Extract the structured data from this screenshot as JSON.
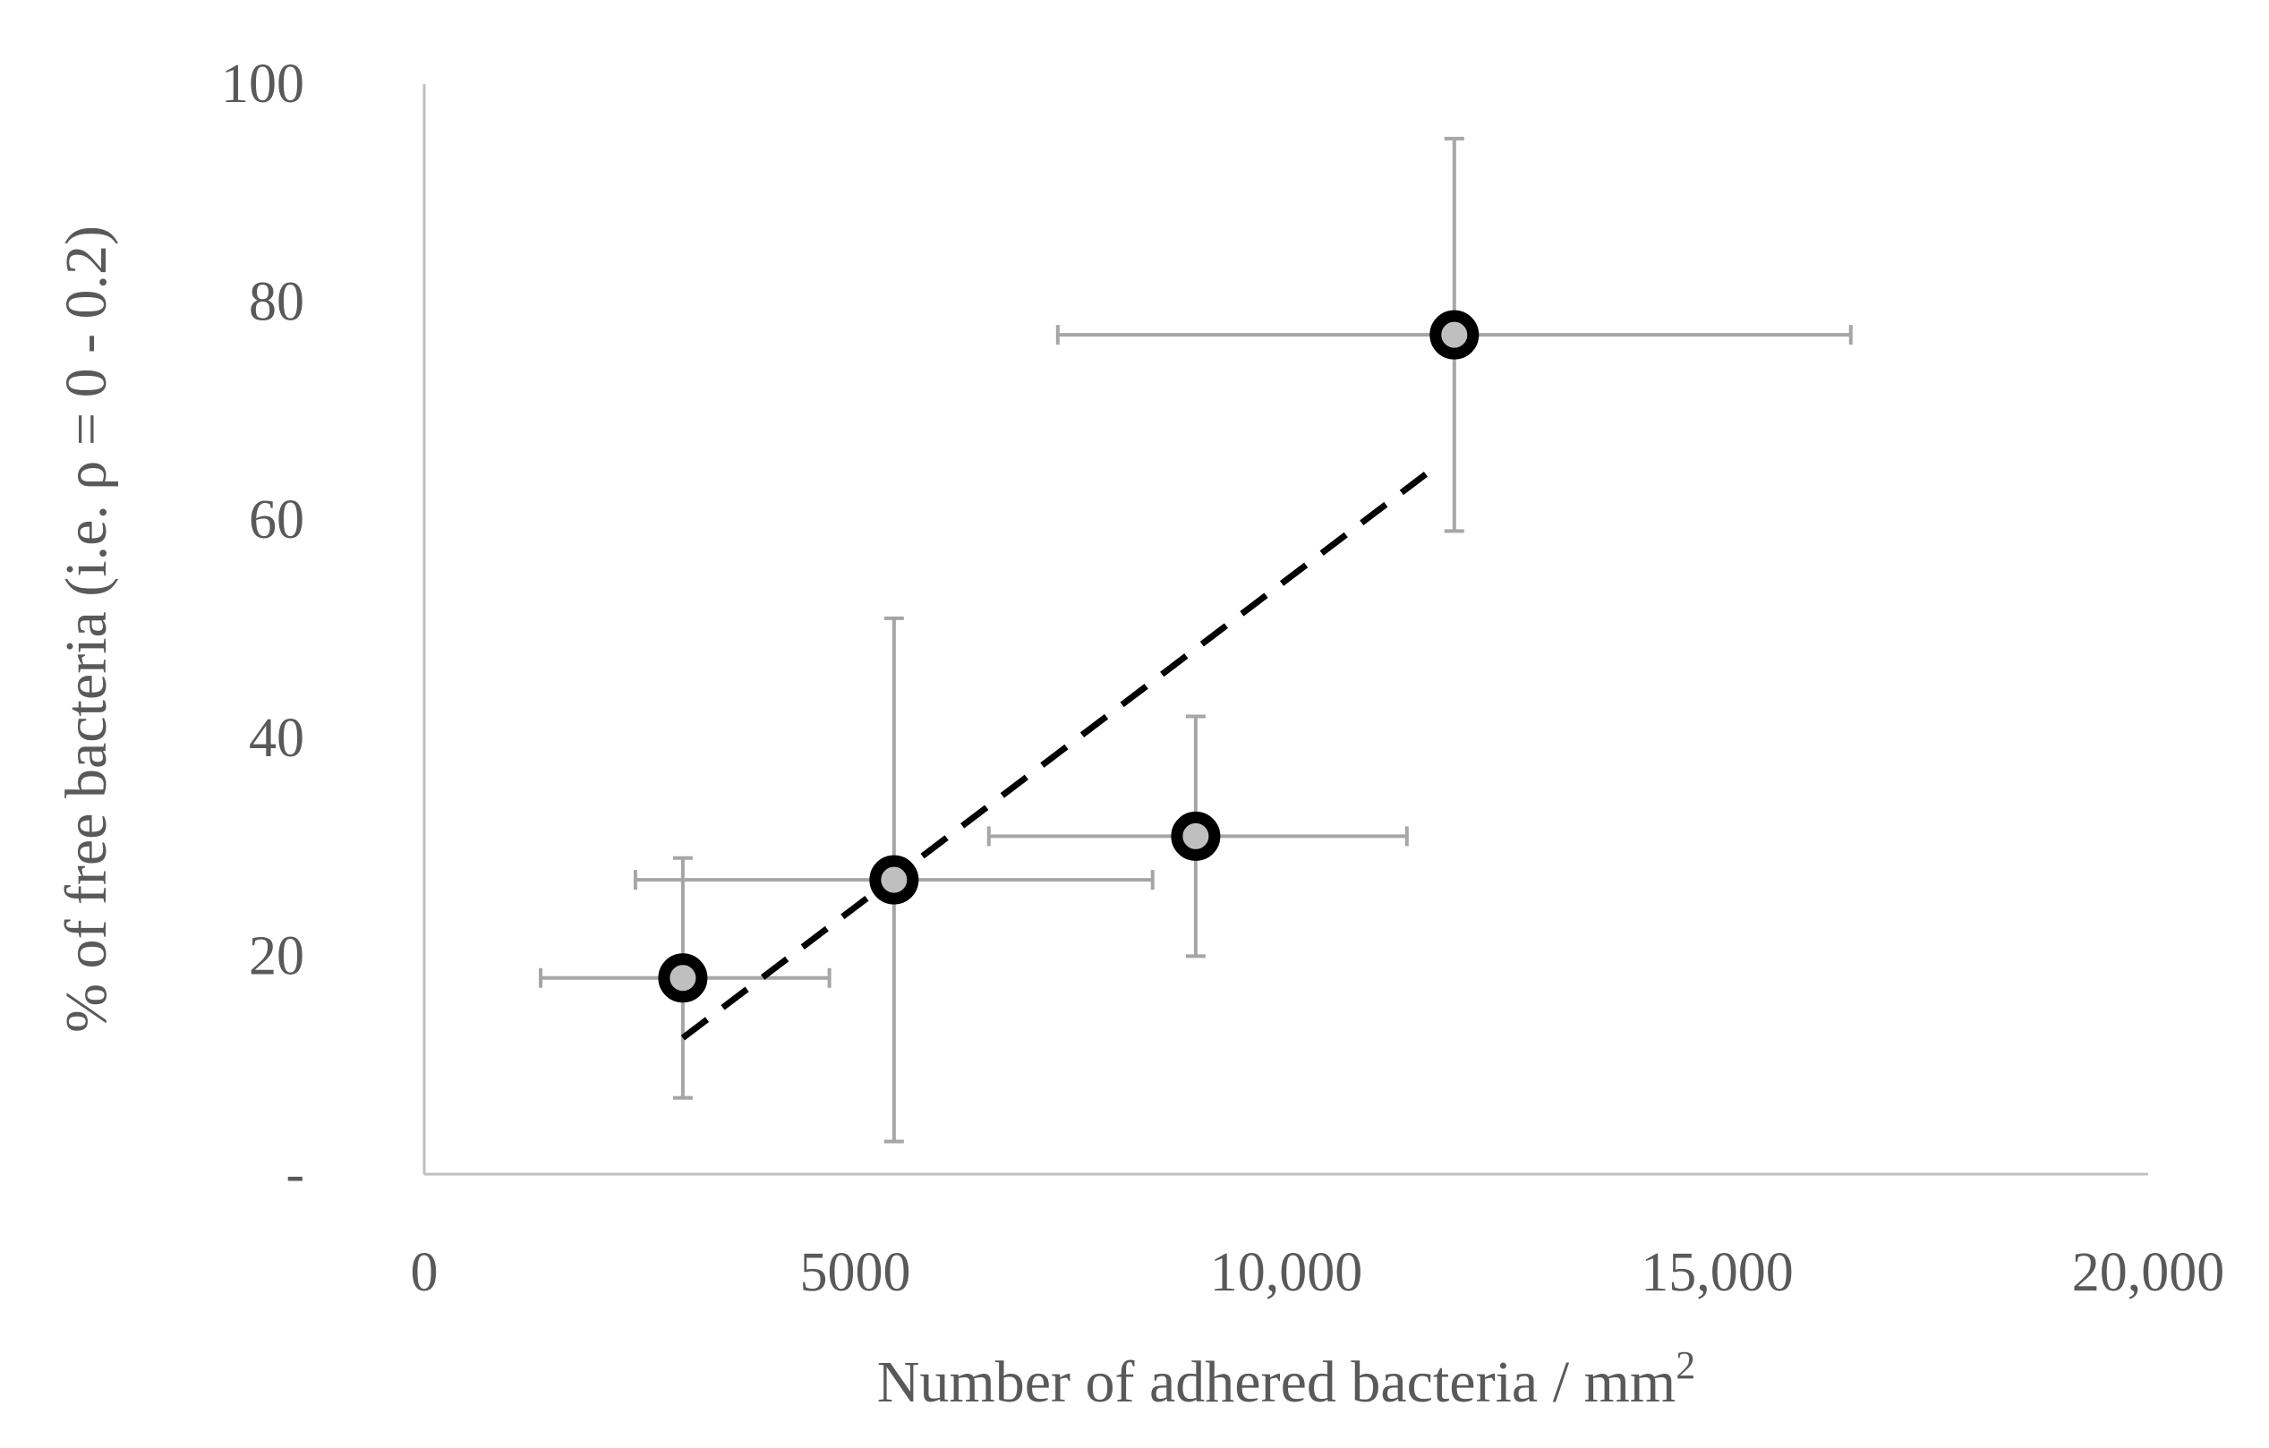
{
  "chart_data": {
    "type": "scatter",
    "title": "",
    "xlabel": "Number of adhered bacteria / mm",
    "xlabel_superscript": "2",
    "ylabel": "% of free bacteria (i.e. ρ = 0 - 0.2)",
    "xlim": [
      0,
      20000
    ],
    "ylim": [
      0,
      100
    ],
    "x_ticks": [
      0,
      5000,
      10000,
      15000,
      20000
    ],
    "x_tick_labels": [
      "0",
      "5000",
      "10,000",
      "15,000",
      "20,000"
    ],
    "y_ticks": [
      0,
      20,
      40,
      60,
      80,
      100
    ],
    "y_tick_labels": [
      "-",
      "20",
      "40",
      "60",
      "80",
      "100"
    ],
    "grid": false,
    "legend": "none",
    "points": [
      {
        "x": 3000,
        "y": 18,
        "x_err_low": 1650,
        "x_err_high": 1700,
        "y_err_low": 11,
        "y_err_high": 11
      },
      {
        "x": 5450,
        "y": 27,
        "x_err_low": 3000,
        "x_err_high": 3000,
        "y_err_low": 24,
        "y_err_high": 24
      },
      {
        "x": 8950,
        "y": 31,
        "x_err_low": 2400,
        "x_err_high": 2450,
        "y_err_low": 11,
        "y_err_high": 11
      },
      {
        "x": 11950,
        "y": 77,
        "x_err_low": 4600,
        "x_err_high": 4600,
        "y_err_low": 18,
        "y_err_high": 18
      }
    ],
    "trendline": {
      "style": "dashed",
      "x": [
        3000,
        11750
      ],
      "y": [
        12.5,
        65
      ]
    },
    "colors": {
      "marker_fill": "#bfbfbf",
      "marker_edge": "#000000",
      "error_bar": "#a6a6a6",
      "axis": "#bfbfbf",
      "text": "#595959",
      "trendline": "#000000"
    }
  }
}
